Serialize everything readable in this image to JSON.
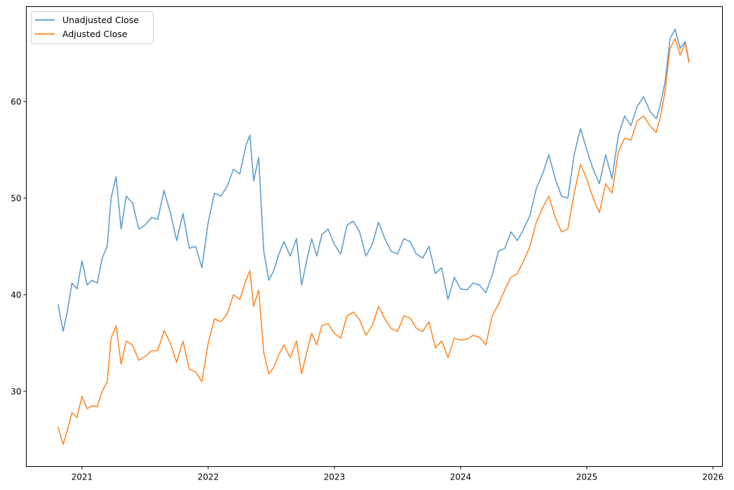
{
  "chart_data": {
    "type": "line",
    "title": "",
    "xlabel": "",
    "ylabel": "",
    "xlim": [
      2020.6,
      2026.05
    ],
    "ylim": [
      22.5,
      68.8
    ],
    "grid": false,
    "legend_position": "upper left",
    "x_ticks": [
      2021,
      2022,
      2023,
      2024,
      2025,
      2026
    ],
    "x_tick_labels": [
      "2021",
      "2022",
      "2023",
      "2024",
      "2025",
      "2026"
    ],
    "y_ticks": [
      30,
      40,
      50,
      60
    ],
    "y_tick_labels": [
      "30",
      "40",
      "50",
      "60"
    ],
    "x": [
      2020.81,
      2020.85,
      2020.88,
      2020.92,
      2020.96,
      2021.0,
      2021.04,
      2021.08,
      2021.12,
      2021.16,
      2021.2,
      2021.23,
      2021.27,
      2021.31,
      2021.35,
      2021.4,
      2021.45,
      2021.5,
      2021.55,
      2021.6,
      2021.65,
      2021.7,
      2021.75,
      2021.8,
      2021.85,
      2021.9,
      2021.95,
      2022.0,
      2022.05,
      2022.1,
      2022.15,
      2022.2,
      2022.25,
      2022.3,
      2022.33,
      2022.36,
      2022.4,
      2022.44,
      2022.48,
      2022.52,
      2022.56,
      2022.6,
      2022.65,
      2022.7,
      2022.74,
      2022.78,
      2022.82,
      2022.86,
      2022.9,
      2022.95,
      2023.0,
      2023.05,
      2023.1,
      2023.15,
      2023.2,
      2023.25,
      2023.3,
      2023.35,
      2023.4,
      2023.45,
      2023.5,
      2023.55,
      2023.6,
      2023.65,
      2023.7,
      2023.75,
      2023.8,
      2023.85,
      2023.9,
      2023.95,
      2024.0,
      2024.05,
      2024.1,
      2024.15,
      2024.2,
      2024.25,
      2024.3,
      2024.35,
      2024.4,
      2024.45,
      2024.5,
      2024.55,
      2024.6,
      2024.65,
      2024.7,
      2024.75,
      2024.8,
      2024.85,
      2024.9,
      2024.95,
      2025.0,
      2025.05,
      2025.1,
      2025.15,
      2025.2,
      2025.25,
      2025.3,
      2025.35,
      2025.4,
      2025.45,
      2025.5,
      2025.55,
      2025.58,
      2025.62,
      2025.66,
      2025.7,
      2025.74,
      2025.78,
      2025.81
    ],
    "series": [
      {
        "name": "Unadjusted Close",
        "color": "#5f9fcc",
        "values": [
          39.0,
          36.2,
          38.0,
          41.2,
          40.6,
          43.5,
          41.0,
          41.5,
          41.2,
          43.8,
          45.0,
          50.0,
          52.2,
          46.8,
          50.2,
          49.5,
          46.8,
          47.2,
          48.0,
          47.8,
          50.8,
          48.5,
          45.6,
          48.4,
          44.8,
          45.0,
          42.8,
          47.5,
          50.5,
          50.2,
          51.2,
          53.0,
          52.5,
          55.5,
          56.5,
          51.8,
          54.2,
          44.5,
          41.5,
          42.5,
          44.2,
          45.5,
          44.0,
          45.8,
          41.0,
          43.5,
          45.8,
          44.0,
          46.2,
          46.8,
          45.2,
          44.2,
          47.2,
          47.6,
          46.5,
          44.0,
          45.2,
          47.5,
          45.8,
          44.5,
          44.2,
          45.8,
          45.5,
          44.2,
          43.8,
          45.0,
          42.2,
          42.8,
          39.5,
          41.8,
          40.6,
          40.5,
          41.2,
          41.0,
          40.2,
          42.0,
          44.5,
          44.8,
          46.5,
          45.6,
          46.8,
          48.2,
          51.0,
          52.5,
          54.5,
          52.0,
          50.2,
          50.0,
          54.5,
          57.2,
          55.0,
          53.0,
          51.5,
          54.5,
          52.0,
          56.5,
          58.5,
          57.5,
          59.5,
          60.5,
          59.0,
          58.2,
          59.5,
          62.0,
          66.5,
          67.5,
          65.5,
          66.2,
          64.2
        ]
      },
      {
        "name": "Adjusted Close",
        "color": "#ff8a2a",
        "values": [
          26.3,
          24.5,
          25.8,
          27.8,
          27.3,
          29.5,
          28.2,
          28.5,
          28.4,
          30.0,
          31.0,
          35.5,
          36.8,
          32.8,
          35.2,
          34.8,
          33.2,
          33.6,
          34.2,
          34.2,
          36.3,
          35.0,
          33.0,
          35.2,
          32.3,
          32.0,
          31.0,
          35.0,
          37.5,
          37.2,
          38.0,
          40.0,
          39.5,
          41.5,
          42.5,
          38.8,
          40.5,
          34.0,
          31.8,
          32.5,
          33.8,
          34.8,
          33.5,
          35.2,
          31.8,
          34.0,
          36.0,
          34.8,
          36.8,
          37.0,
          36.0,
          35.5,
          37.8,
          38.2,
          37.4,
          35.8,
          36.8,
          38.8,
          37.5,
          36.5,
          36.2,
          37.8,
          37.6,
          36.5,
          36.2,
          37.2,
          34.5,
          35.2,
          33.5,
          35.5,
          35.3,
          35.4,
          35.8,
          35.6,
          34.8,
          37.8,
          39.0,
          40.5,
          41.8,
          42.2,
          43.5,
          45.0,
          47.5,
          49.0,
          50.2,
          48.0,
          46.5,
          46.8,
          50.5,
          53.5,
          52.0,
          50.0,
          48.5,
          51.5,
          50.5,
          54.8,
          56.2,
          56.0,
          58.0,
          58.5,
          57.5,
          56.8,
          58.2,
          61.0,
          65.5,
          66.5,
          64.8,
          66.0,
          64.0
        ]
      }
    ]
  },
  "legend": {
    "items": [
      {
        "label": "Unadjusted Close",
        "color": "#5f9fcc"
      },
      {
        "label": "Adjusted Close",
        "color": "#ff8a2a"
      }
    ]
  }
}
